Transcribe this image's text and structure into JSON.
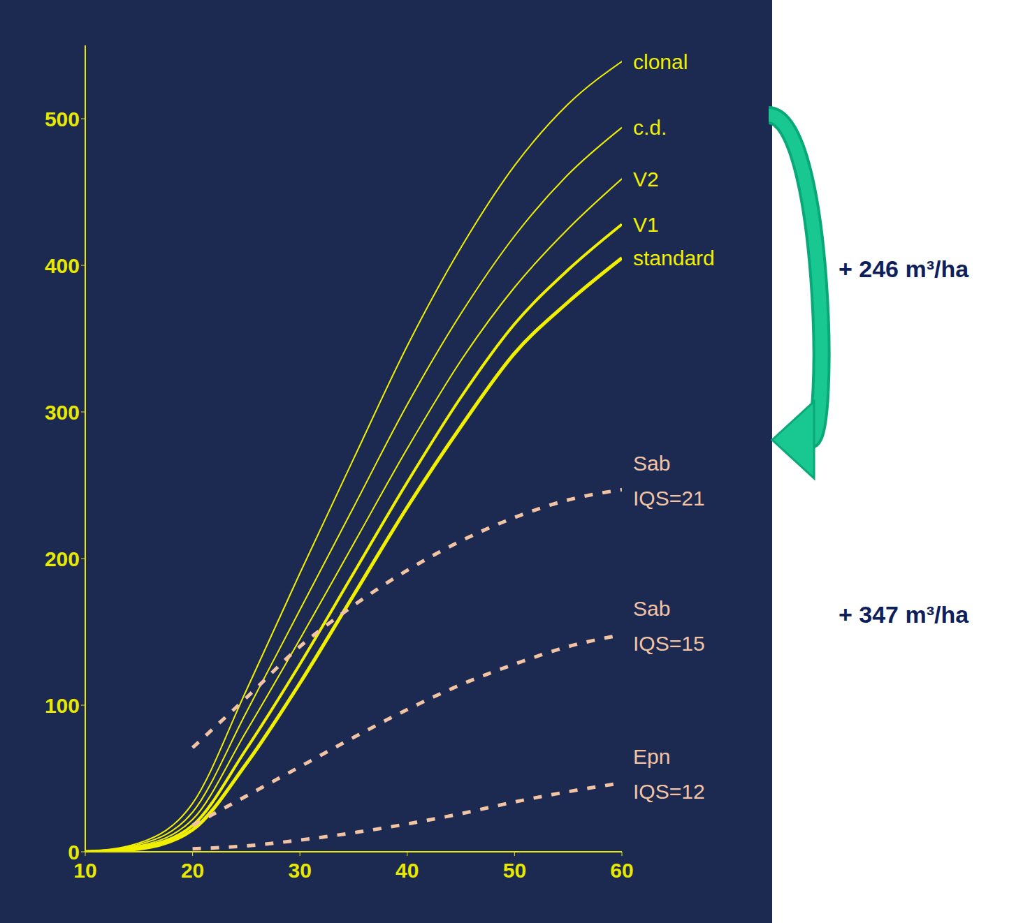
{
  "chart_data": {
    "type": "line",
    "x": [
      10,
      15,
      20,
      25,
      30,
      35,
      40,
      45,
      50,
      55,
      60
    ],
    "xlim": [
      10,
      60
    ],
    "xticks": [
      10,
      20,
      30,
      40,
      50,
      60
    ],
    "ylim": [
      0,
      550
    ],
    "yticks": [
      0,
      100,
      200,
      300,
      400,
      500
    ],
    "grid": false,
    "series": [
      {
        "name": "clonal",
        "color": "#f0f000",
        "line_style": "solid",
        "values": [
          0,
          6,
          33,
          110,
          190,
          268,
          345,
          412,
          468,
          510,
          539
        ]
      },
      {
        "name": "c.d.",
        "color": "#f0f000",
        "line_style": "solid",
        "values": [
          0,
          5,
          27,
          95,
          165,
          235,
          305,
          367,
          420,
          462,
          494
        ]
      },
      {
        "name": "V2",
        "color": "#f0f000",
        "line_style": "solid",
        "values": [
          0,
          4,
          22,
          82,
          145,
          210,
          275,
          335,
          385,
          425,
          459
        ]
      },
      {
        "name": "V1",
        "color": "#f0f000",
        "line_style": "solid",
        "values": [
          0,
          3,
          18,
          70,
          128,
          190,
          252,
          310,
          360,
          397,
          428
        ]
      },
      {
        "name": "standard",
        "color": "#f0f000",
        "line_style": "solid",
        "values": [
          0,
          2,
          15,
          60,
          115,
          175,
          235,
          290,
          340,
          375,
          405
        ]
      },
      {
        "name": "Sab IQS=21",
        "color": "#f2c4a4",
        "line_style": "dashed",
        "values": [
          null,
          null,
          71,
          105,
          140,
          168,
          192,
          212,
          228,
          240,
          247
        ]
      },
      {
        "name": "Sab IQS=15",
        "color": "#f2c4a4",
        "line_style": "dashed",
        "values": [
          null,
          null,
          18,
          38,
          58,
          78,
          97,
          114,
          128,
          140,
          148
        ]
      },
      {
        "name": "Epn IQS=12",
        "color": "#f2c4a4",
        "line_style": "dashed",
        "values": [
          null,
          null,
          2,
          4,
          8,
          13,
          19,
          26,
          34,
          41,
          47
        ]
      }
    ],
    "annotations": [
      "+ 246 m³/ha",
      "+ 347 m³/ha"
    ]
  }
}
